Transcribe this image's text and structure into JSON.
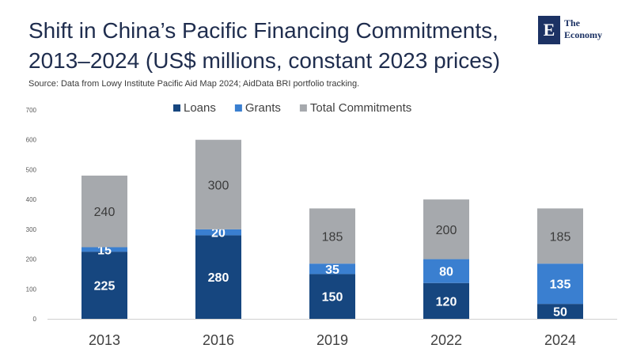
{
  "title_lines": [
    "Shift in China’s Pacific Financing Commitments,",
    "2013–2024 (US$ millions, constant 2023 prices)"
  ],
  "source": "Source: Data from Lowy Institute Pacific Aid Map 2024; AidData BRI portfolio tracking.",
  "logo": {
    "line1": "The",
    "line2": "Economy",
    "mark": "E"
  },
  "colors": {
    "loans": "#16467f",
    "grants": "#3a7fd0",
    "total": "#a6a9ad",
    "title": "#1f2d4e"
  },
  "chart_data": {
    "type": "bar",
    "stacked": true,
    "categories": [
      "2013",
      "2016",
      "2019",
      "2022",
      "2024"
    ],
    "series": [
      {
        "name": "Loans",
        "values": [
          225,
          280,
          150,
          120,
          50
        ]
      },
      {
        "name": "Grants",
        "values": [
          15,
          20,
          35,
          80,
          135
        ]
      },
      {
        "name": "Total Commitments",
        "values": [
          240,
          300,
          185,
          200,
          185
        ]
      }
    ],
    "y_ticks": [
      "0",
      "100",
      "200",
      "300",
      "400",
      "500",
      "600",
      "700"
    ],
    "ylim": [
      0,
      700
    ],
    "grid": false,
    "legend_position": "top-center"
  }
}
